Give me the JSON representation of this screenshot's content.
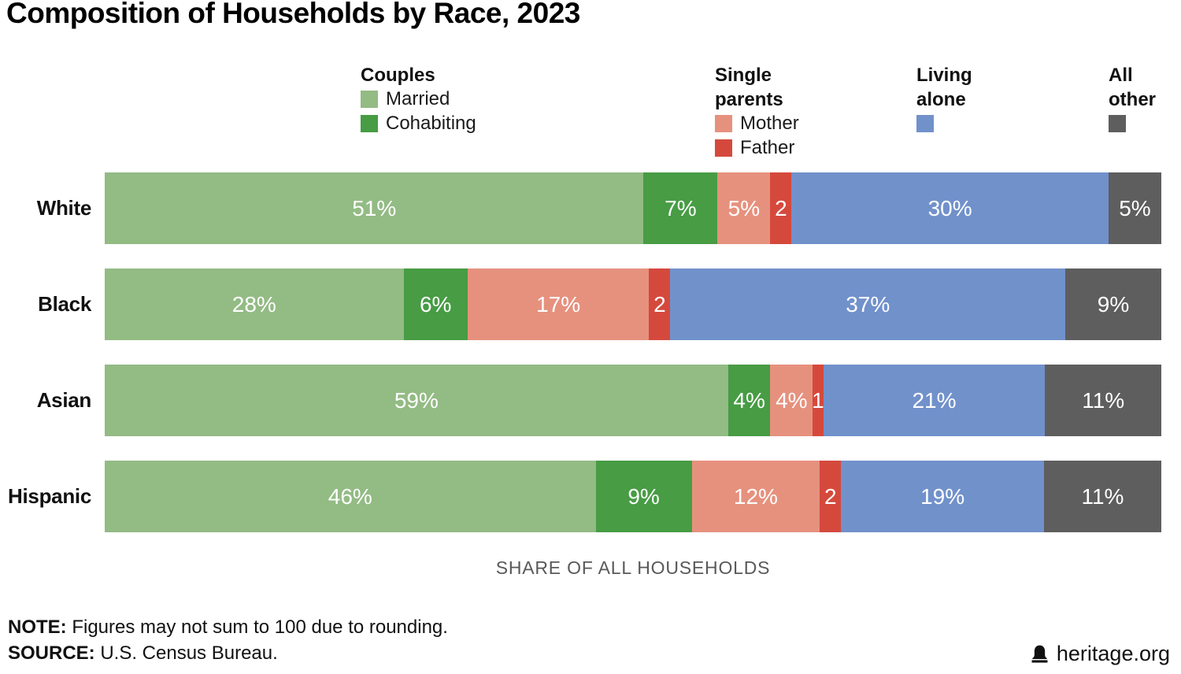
{
  "title": "Composition of Households by Race, 2023",
  "legend": {
    "groups": [
      {
        "header": "Couples",
        "items": [
          {
            "name": "married",
            "label": "Married",
            "color": "#93BB84"
          },
          {
            "name": "cohabiting",
            "label": "Cohabiting",
            "color": "#479C44"
          }
        ]
      },
      {
        "header": "Single parents",
        "items": [
          {
            "name": "mother",
            "label": "Mother",
            "color": "#E6917E"
          },
          {
            "name": "father",
            "label": "Father",
            "color": "#D5493D"
          }
        ]
      },
      {
        "header": "Living alone",
        "items": [
          {
            "name": "living-alone",
            "label": "",
            "color": "#7191CB"
          }
        ]
      },
      {
        "header": "All other",
        "items": [
          {
            "name": "all-other",
            "label": "",
            "color": "#5E5E5E"
          }
        ]
      }
    ]
  },
  "chart_data": {
    "type": "bar",
    "orientation": "horizontal",
    "stacked": true,
    "title": "Composition of Households by Race, 2023",
    "xlabel": "SHARE OF ALL HOUSEHOLDS",
    "xlim": [
      0,
      100
    ],
    "grid": false,
    "legend_position": "top",
    "categories": [
      "White",
      "Black",
      "Asian",
      "Hispanic"
    ],
    "series": [
      {
        "name": "Married",
        "color": "#93BB84",
        "values": [
          51,
          28,
          59,
          46
        ],
        "labels": [
          "51%",
          "28%",
          "59%",
          "46%"
        ]
      },
      {
        "name": "Cohabiting",
        "color": "#479C44",
        "values": [
          7,
          6,
          4,
          9
        ],
        "labels": [
          "7%",
          "6%",
          "4%",
          "9%"
        ]
      },
      {
        "name": "Mother",
        "color": "#E6917E",
        "values": [
          5,
          17,
          4,
          12
        ],
        "labels": [
          "5%",
          "17%",
          "4%",
          "12%"
        ]
      },
      {
        "name": "Father",
        "color": "#D5493D",
        "values": [
          2,
          2,
          1,
          2
        ],
        "labels": [
          "2",
          "2",
          "1",
          "2"
        ]
      },
      {
        "name": "Living alone",
        "color": "#7191CB",
        "values": [
          30,
          37,
          21,
          19
        ],
        "labels": [
          "30%",
          "37%",
          "21%",
          "19%"
        ]
      },
      {
        "name": "All other",
        "color": "#5E5E5E",
        "values": [
          5,
          9,
          11,
          11
        ],
        "labels": [
          "5%",
          "9%",
          "11%",
          "11%"
        ]
      }
    ]
  },
  "footer": {
    "note_label": "NOTE:",
    "note_text": " Figures may not sum to 100 due to rounding.",
    "source_label": "SOURCE:",
    "source_text": " U.S. Census Bureau.",
    "brand": "heritage.org"
  }
}
